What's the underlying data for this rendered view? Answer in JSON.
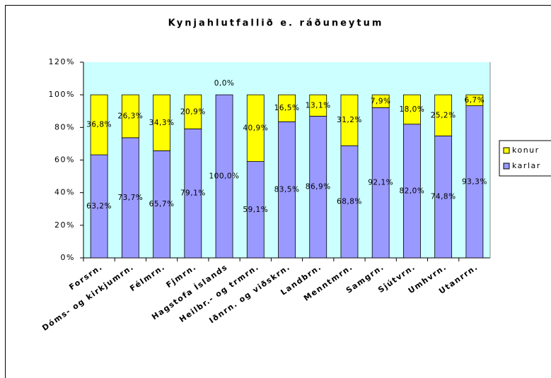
{
  "chart_data": {
    "type": "bar",
    "stacked": true,
    "title": "Kynjahlutfallið e. ráðuneytum",
    "categories": [
      "Forsrn.",
      "Dóms- og kirkjumrn.",
      "Félmrn.",
      "Fjmrn.",
      "Hagstofa Íslands",
      "Heilbr.- og trmrn.",
      "Iðnrn. og viðskrn.",
      "Landbrn.",
      "Menntmrn.",
      "Samgrn.",
      "Sjútvrn.",
      "Umhvrn.",
      "Utanrrn."
    ],
    "series": [
      {
        "name": "karlar",
        "color": "#9999ff",
        "values": [
          63.2,
          73.7,
          65.7,
          79.1,
          100.0,
          59.1,
          83.5,
          86.9,
          68.8,
          92.1,
          82.0,
          74.8,
          93.3
        ],
        "value_labels": [
          "63,2%",
          "73,7%",
          "65,7%",
          "79,1%",
          "100,0%",
          "59,1%",
          "83,5%",
          "86,9%",
          "68,8%",
          "92,1%",
          "82,0%",
          "74,8%",
          "93,3%"
        ]
      },
      {
        "name": "konur",
        "color": "#ffff00",
        "values": [
          36.8,
          26.3,
          34.3,
          20.9,
          0.0,
          40.9,
          16.5,
          13.1,
          31.2,
          7.9,
          18.0,
          25.2,
          6.7
        ],
        "value_labels": [
          "36,8%",
          "26,3%",
          "34,3%",
          "20,9%",
          "0,0%",
          "40,9%",
          "16,5%",
          "13,1%",
          "31,2%",
          "7,9%",
          "18,0%",
          "25,2%",
          "6,7%"
        ]
      }
    ],
    "ylim": [
      0,
      120
    ],
    "yticks": [
      {
        "value": 0,
        "label": "0%"
      },
      {
        "value": 20,
        "label": "20%"
      },
      {
        "value": 40,
        "label": "40%"
      },
      {
        "value": 60,
        "label": "60%"
      },
      {
        "value": 80,
        "label": "80%"
      },
      {
        "value": 100,
        "label": "100%"
      },
      {
        "value": 120,
        "label": "120%"
      }
    ],
    "grid": false,
    "legend": "right",
    "plot_background": "#ccffff"
  }
}
